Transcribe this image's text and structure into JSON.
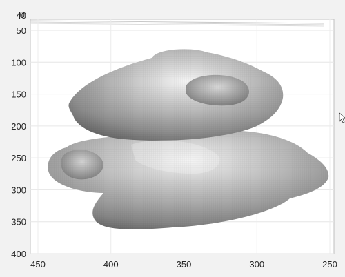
{
  "plot": {
    "x_axis": {
      "ticks": [
        "450",
        "400",
        "350",
        "300",
        "250"
      ],
      "range": [
        450,
        250
      ],
      "tick_values": [
        450,
        400,
        350,
        300,
        250
      ]
    },
    "y_axis": {
      "ticks": [
        "40",
        "50",
        "100",
        "150",
        "200",
        "250",
        "300",
        "350",
        "400"
      ],
      "range": [
        40,
        400
      ],
      "tick_values": [
        40,
        50,
        100,
        150,
        200,
        250,
        300,
        350,
        400
      ]
    },
    "corner_tick": "0",
    "surface_color": "#9a9a9a",
    "grid": true
  },
  "cursor": {
    "icon": "mouse-pointer-icon"
  }
}
